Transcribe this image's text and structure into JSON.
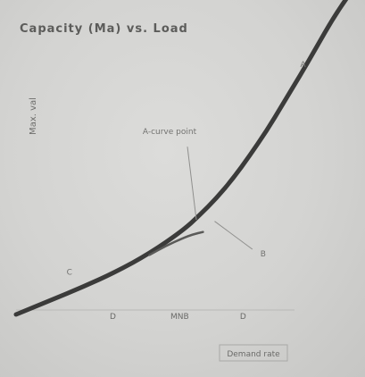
{
  "chart_data": {
    "type": "line",
    "title": "Capacity (Ma) vs. Load",
    "subtitle": "",
    "ylabel": "Max. val",
    "xlabel": "Demand rate",
    "xlim": [
      0,
      10
    ],
    "ylim": [
      0,
      10
    ],
    "grid": false,
    "legend": "none",
    "x_ticks": [
      {
        "x": 2.9,
        "label": "D"
      },
      {
        "x": 4.9,
        "label": "MNB"
      },
      {
        "x": 6.8,
        "label": "D"
      }
    ],
    "series": [
      {
        "name": "",
        "color": "#3b3b3a",
        "x": [
          0.0,
          1.0,
          2.0,
          3.0,
          4.0,
          5.0,
          5.5,
          6.0,
          6.5,
          7.0,
          7.5,
          8.0,
          8.5,
          9.0,
          9.5,
          10.0
        ],
        "y": [
          0.0,
          0.45,
          0.9,
          1.4,
          2.0,
          2.75,
          3.25,
          3.8,
          4.45,
          5.2,
          6.0,
          6.9,
          7.8,
          8.75,
          9.7,
          10.5
        ]
      },
      {
        "name": "",
        "color": "#5a5a58",
        "x": [
          4.0,
          4.5,
          5.0,
          5.3,
          5.6
        ],
        "y": [
          1.95,
          2.25,
          2.5,
          2.62,
          2.7
        ]
      }
    ],
    "annotations": [
      {
        "text": "A-curve point",
        "x": 4.6,
        "y": 5.9
      },
      {
        "text": "B",
        "x": 7.4,
        "y": 1.9
      },
      {
        "text": "A",
        "x": 8.6,
        "y": 8.1
      },
      {
        "text": "C",
        "x": 1.6,
        "y": 1.3
      }
    ]
  }
}
